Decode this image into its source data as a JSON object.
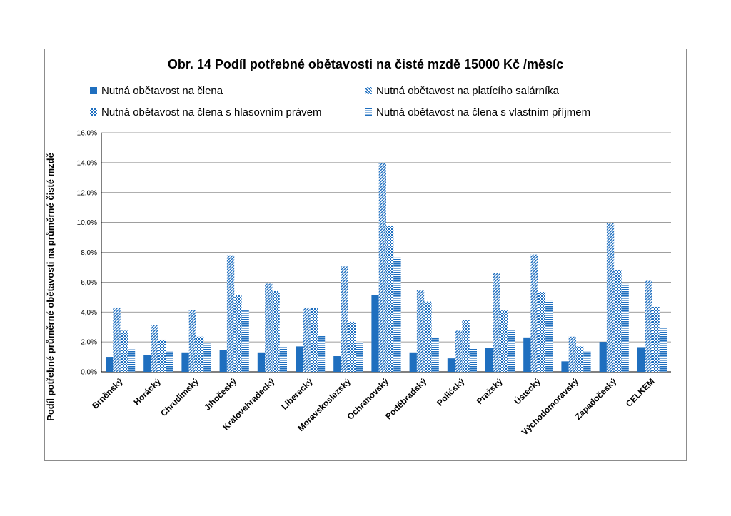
{
  "colors": {
    "series": [
      "#1F6FBF",
      "#1F6FBF",
      "#1F6FBF",
      "#1F6FBF"
    ],
    "grid": "#7f7f7f",
    "frame": "#8c8c8c"
  },
  "chart_data": {
    "type": "bar",
    "title": "Obr. 14   Podíl potřebné obětavosti  na čisté mzdě 15000 Kč /měsíc",
    "xlabel": "",
    "ylabel": "Podíl potřebné průměrné obětavosti na průměrné  čisté mzdě",
    "ylim": [
      0,
      16
    ],
    "y_ticks": [
      "0,0%",
      "2,0%",
      "4,0%",
      "6,0%",
      "8,0%",
      "10,0%",
      "12,0%",
      "14,0%",
      "16,0%"
    ],
    "grid": true,
    "legend_position": "top",
    "categories": [
      "Brněnský",
      "Horácký",
      "Chrudimský",
      "Jihočeský",
      "Královéhradecký",
      "Liberecký",
      "Moravskoslezský",
      "Ochranovský",
      "Poděbradský",
      "Poličský",
      "Pražský",
      "Ústecký",
      "Východomoravský",
      "Západočeský",
      "CELKEM"
    ],
    "series": [
      {
        "name": "Nutná obětavost na člena",
        "pattern": "solid",
        "values": [
          1.0,
          1.1,
          1.3,
          1.45,
          1.3,
          1.7,
          1.05,
          5.15,
          1.3,
          0.9,
          1.6,
          2.3,
          0.7,
          2.0,
          1.65
        ]
      },
      {
        "name": "Nutná obětavost na platícího salárníka",
        "pattern": "diagonal",
        "values": [
          4.3,
          3.15,
          4.15,
          7.8,
          5.9,
          4.3,
          7.05,
          14.0,
          5.45,
          2.75,
          6.6,
          7.85,
          2.35,
          9.95,
          6.1
        ]
      },
      {
        "name": "Nutná obětavost na člena s hlasovním právem",
        "pattern": "checker",
        "values": [
          2.75,
          2.15,
          2.35,
          5.15,
          5.4,
          4.3,
          3.35,
          9.75,
          4.7,
          3.45,
          4.1,
          5.35,
          1.7,
          6.8,
          4.35
        ]
      },
      {
        "name": "Nutná obětavost na člena s vlastním příjmem",
        "pattern": "horizontal",
        "values": [
          1.5,
          1.35,
          1.9,
          4.1,
          1.65,
          2.4,
          2.0,
          7.65,
          2.3,
          1.55,
          2.85,
          4.75,
          1.35,
          5.9,
          2.95
        ]
      }
    ]
  }
}
